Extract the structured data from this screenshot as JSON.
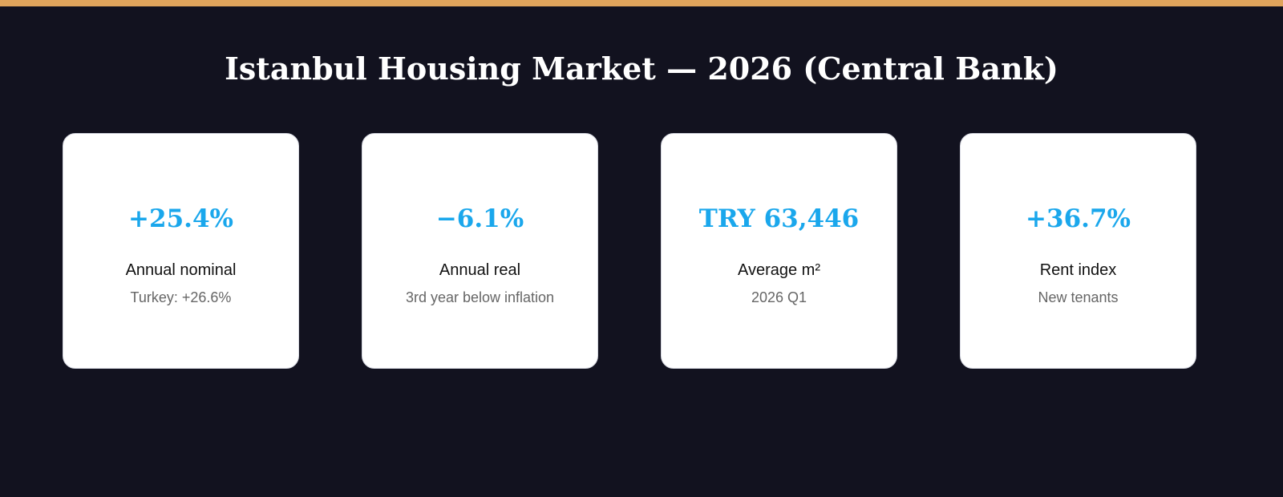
{
  "header": {
    "title": "Istanbul Housing Market — 2026 (Central Bank)"
  },
  "cards": [
    {
      "value": "+25.4%",
      "label": "Annual nominal",
      "note": "Turkey: +26.6%"
    },
    {
      "value": "−6.1%",
      "label": "Annual real",
      "note": "3rd year below inflation"
    },
    {
      "value": "TRY 63,446",
      "label": "Average m²",
      "note": "2026 Q1"
    },
    {
      "value": "+36.7%",
      "label": "Rent index",
      "note": "New tenants"
    }
  ]
}
